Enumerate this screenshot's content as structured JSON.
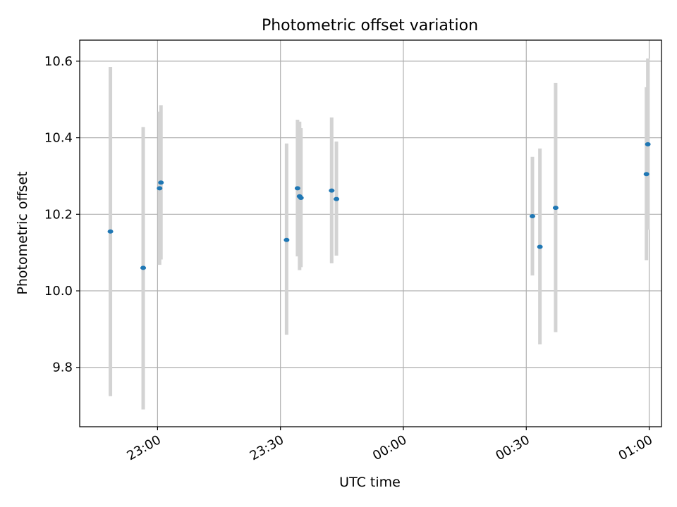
{
  "chart_data": {
    "type": "scatter",
    "title": "Photometric offset variation",
    "xlabel": "UTC time",
    "ylabel": "Photometric offset",
    "x_range": [
      "22:41",
      "01:03"
    ],
    "ylim": [
      9.645,
      10.655
    ],
    "grid": true,
    "x_ticks": [
      "23:00",
      "23:30",
      "00:00",
      "00:30",
      "01:00"
    ],
    "y_ticks": [
      "9.8",
      "10.0",
      "10.2",
      "10.4",
      "10.6"
    ],
    "colors": {
      "marker": "#1f77b4",
      "errorbar": "#d3d3d3",
      "grid": "#b0b0b0"
    },
    "points": [
      {
        "time": "22:48:30",
        "y": 10.155,
        "ylo": 9.725,
        "yhi": 10.585
      },
      {
        "time": "22:56:30",
        "y": 10.06,
        "ylo": 9.69,
        "yhi": 10.428
      },
      {
        "time": "23:00:30",
        "y": 10.268,
        "ylo": 10.068,
        "yhi": 10.468
      },
      {
        "time": "23:00:50",
        "y": 10.283,
        "ylo": 10.082,
        "yhi": 10.485
      },
      {
        "time": "23:31:30",
        "y": 10.133,
        "ylo": 9.885,
        "yhi": 10.385
      },
      {
        "time": "23:34:10",
        "y": 10.268,
        "ylo": 10.09,
        "yhi": 10.447
      },
      {
        "time": "23:34:40",
        "y": 10.247,
        "ylo": 10.054,
        "yhi": 10.442
      },
      {
        "time": "23:35:00",
        "y": 10.243,
        "ylo": 10.062,
        "yhi": 10.425
      },
      {
        "time": "23:42:30",
        "y": 10.262,
        "ylo": 10.072,
        "yhi": 10.453
      },
      {
        "time": "23:43:40",
        "y": 10.24,
        "ylo": 10.092,
        "yhi": 10.39
      },
      {
        "time": "00:31:30",
        "y": 10.195,
        "ylo": 10.04,
        "yhi": 10.35
      },
      {
        "time": "00:33:20",
        "y": 10.115,
        "ylo": 9.86,
        "yhi": 10.372
      },
      {
        "time": "00:37:10",
        "y": 10.217,
        "ylo": 9.892,
        "yhi": 10.543
      },
      {
        "time": "00:59:20",
        "y": 10.305,
        "ylo": 10.08,
        "yhi": 10.532
      },
      {
        "time": "00:59:40",
        "y": 10.383,
        "ylo": 10.16,
        "yhi": 10.607
      }
    ]
  }
}
